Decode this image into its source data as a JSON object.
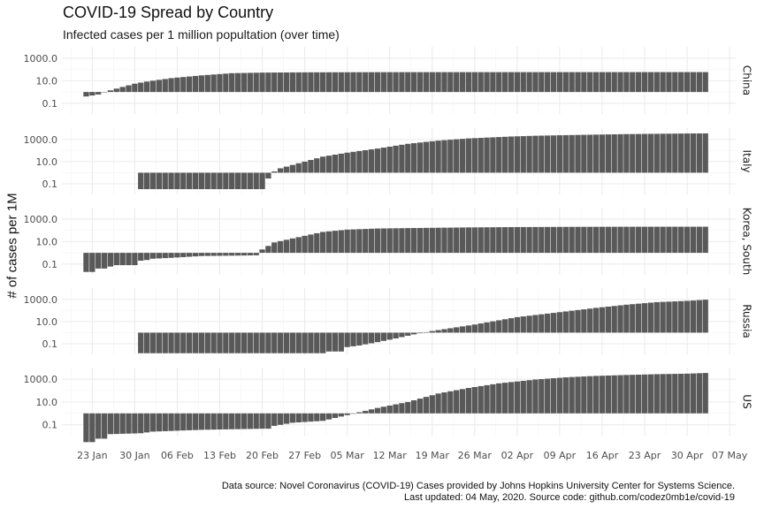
{
  "title": "COVID-19 Spread by Country",
  "subtitle": "Infected cases per 1 million popultation (over time)",
  "caption": {
    "line1": "Data source: Novel Coronavirus (COVID-19) Cases provided by Johns Hopkins University Center for Systems Science.",
    "line2": "Last updated: 04 May, 2020. Source code: github.com/codez0mb1e/covid-19"
  },
  "colors": {
    "bar": "#595959",
    "grid": "#ebebeb",
    "background": "#ffffff"
  },
  "chart_data": {
    "type": "bar",
    "facet": "rows",
    "ylabel": "# of cases per 1M",
    "xlabel": "",
    "y_scale": "log10",
    "y_ticks": [
      "0.1",
      "10.0",
      "1000.0"
    ],
    "x_ticks": [
      "23 Jan",
      "30 Jan",
      "06 Feb",
      "13 Feb",
      "20 Feb",
      "27 Feb",
      "05 Mar",
      "12 Mar",
      "19 Mar",
      "26 Mar",
      "02 Apr",
      "09 Apr",
      "16 Apr",
      "23 Apr",
      "30 Apr",
      "07 May"
    ],
    "x_range": [
      "2020-01-18",
      "2020-05-08"
    ],
    "baseline": 1,
    "grid": true,
    "bar_dates": [
      "2020-01-22",
      "2020-05-03"
    ],
    "series": [
      {
        "name": "China",
        "start": "2020-01-22",
        "keys": [
          [
            "2020-01-22",
            0.4
          ],
          [
            "2020-01-24",
            0.6
          ],
          [
            "2020-01-25",
            1.0
          ],
          [
            "2020-01-26",
            1.4
          ],
          [
            "2020-01-27",
            2.0
          ],
          [
            "2020-01-30",
            5.5
          ],
          [
            "2020-02-01",
            8.5
          ],
          [
            "2020-02-05",
            17
          ],
          [
            "2020-02-10",
            30
          ],
          [
            "2020-02-15",
            47
          ],
          [
            "2020-02-20",
            53
          ],
          [
            "2020-02-27",
            56
          ],
          [
            "2020-03-10",
            58
          ],
          [
            "2020-05-03",
            59
          ]
        ]
      },
      {
        "name": "Italy",
        "start": "2020-01-31",
        "keys": [
          [
            "2020-01-31",
            0.033
          ],
          [
            "2020-02-20",
            0.033
          ],
          [
            "2020-02-21",
            0.3
          ],
          [
            "2020-02-22",
            1.3
          ],
          [
            "2020-02-23",
            2.5
          ],
          [
            "2020-02-25",
            5
          ],
          [
            "2020-02-28",
            14
          ],
          [
            "2020-03-01",
            28
          ],
          [
            "2020-03-05",
            64
          ],
          [
            "2020-03-10",
            150
          ],
          [
            "2020-03-15",
            400
          ],
          [
            "2020-03-20",
            780
          ],
          [
            "2020-03-25",
            1230
          ],
          [
            "2020-04-01",
            1820
          ],
          [
            "2020-04-05",
            2130
          ],
          [
            "2020-04-10",
            2420
          ],
          [
            "2020-04-15",
            2690
          ],
          [
            "2020-04-20",
            2990
          ],
          [
            "2020-04-25",
            3200
          ],
          [
            "2020-04-30",
            3410
          ],
          [
            "2020-05-03",
            3480
          ]
        ]
      },
      {
        "name": "Korea, South",
        "start": "2020-01-22",
        "keys": [
          [
            "2020-01-22",
            0.02
          ],
          [
            "2020-01-23",
            0.02
          ],
          [
            "2020-01-24",
            0.04
          ],
          [
            "2020-01-25",
            0.04
          ],
          [
            "2020-01-26",
            0.06
          ],
          [
            "2020-01-27",
            0.08
          ],
          [
            "2020-01-30",
            0.08
          ],
          [
            "2020-01-31",
            0.2
          ],
          [
            "2020-02-01",
            0.23
          ],
          [
            "2020-02-02",
            0.3
          ],
          [
            "2020-02-05",
            0.36
          ],
          [
            "2020-02-10",
            0.52
          ],
          [
            "2020-02-15",
            0.56
          ],
          [
            "2020-02-19",
            0.6
          ],
          [
            "2020-02-20",
            2.0
          ],
          [
            "2020-02-22",
            8.4
          ],
          [
            "2020-02-25",
            19
          ],
          [
            "2020-03-01",
            72
          ],
          [
            "2020-03-05",
            116
          ],
          [
            "2020-03-10",
            145
          ],
          [
            "2020-03-15",
            158
          ],
          [
            "2020-03-20",
            170
          ],
          [
            "2020-03-25",
            182
          ],
          [
            "2020-04-01",
            193
          ],
          [
            "2020-04-10",
            203
          ],
          [
            "2020-04-20",
            208
          ],
          [
            "2020-05-03",
            210
          ]
        ]
      },
      {
        "name": "Russia",
        "start": "2020-01-31",
        "keys": [
          [
            "2020-01-31",
            0.014
          ],
          [
            "2020-03-01",
            0.014
          ],
          [
            "2020-03-02",
            0.02
          ],
          [
            "2020-03-04",
            0.02
          ],
          [
            "2020-03-05",
            0.05
          ],
          [
            "2020-03-07",
            0.07
          ],
          [
            "2020-03-10",
            0.14
          ],
          [
            "2020-03-13",
            0.3
          ],
          [
            "2020-03-16",
            0.7
          ],
          [
            "2020-03-19",
            1.4
          ],
          [
            "2020-03-22",
            2.5
          ],
          [
            "2020-03-26",
            5.4
          ],
          [
            "2020-03-30",
            13
          ],
          [
            "2020-04-02",
            25
          ],
          [
            "2020-04-06",
            45
          ],
          [
            "2020-04-10",
            81
          ],
          [
            "2020-04-15",
            170
          ],
          [
            "2020-04-20",
            330
          ],
          [
            "2020-04-25",
            560
          ],
          [
            "2020-04-30",
            730
          ],
          [
            "2020-05-03",
            930
          ]
        ]
      },
      {
        "name": "US",
        "start": "2020-01-22",
        "keys": [
          [
            "2020-01-22",
            0.003
          ],
          [
            "2020-01-23",
            0.003
          ],
          [
            "2020-01-24",
            0.006
          ],
          [
            "2020-01-25",
            0.006
          ],
          [
            "2020-01-26",
            0.015
          ],
          [
            "2020-01-31",
            0.018
          ],
          [
            "2020-02-02",
            0.025
          ],
          [
            "2020-02-10",
            0.036
          ],
          [
            "2020-02-20",
            0.045
          ],
          [
            "2020-02-21",
            0.045
          ],
          [
            "2020-02-22",
            0.08
          ],
          [
            "2020-02-25",
            0.15
          ],
          [
            "2020-03-01",
            0.22
          ],
          [
            "2020-03-05",
            0.7
          ],
          [
            "2020-03-10",
            3
          ],
          [
            "2020-03-15",
            10
          ],
          [
            "2020-03-20",
            55
          ],
          [
            "2020-03-25",
            170
          ],
          [
            "2020-03-30",
            430
          ],
          [
            "2020-04-05",
            930
          ],
          [
            "2020-04-10",
            1450
          ],
          [
            "2020-04-15",
            1940
          ],
          [
            "2020-04-20",
            2340
          ],
          [
            "2020-04-25",
            2740
          ],
          [
            "2020-04-30",
            3050
          ],
          [
            "2020-05-03",
            3500
          ]
        ]
      }
    ]
  }
}
